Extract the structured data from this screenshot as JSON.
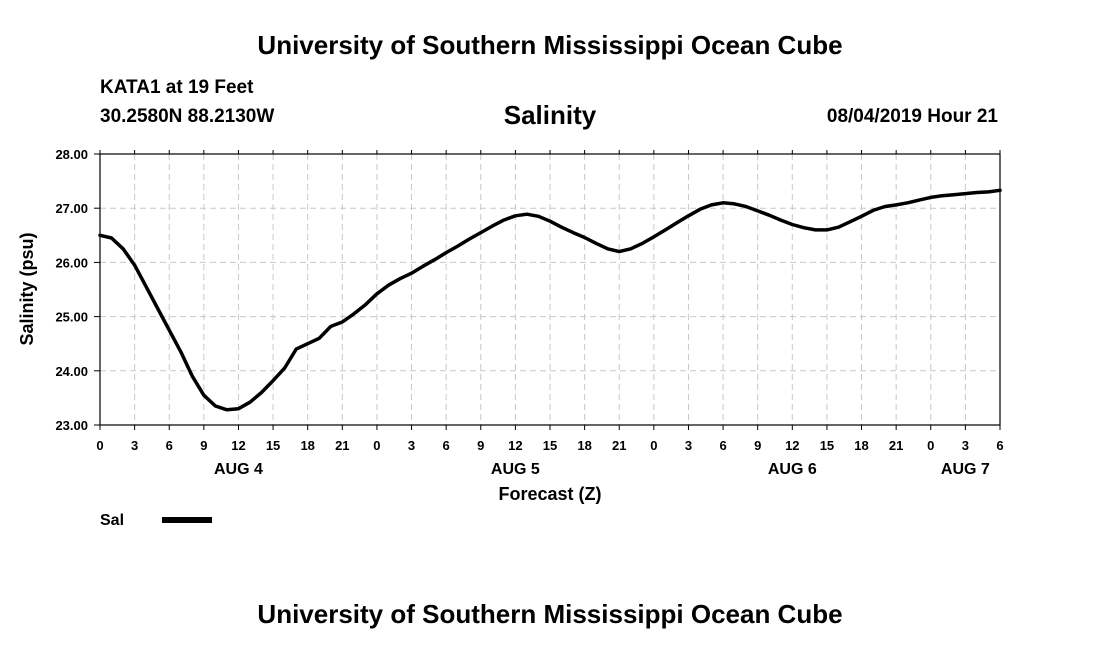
{
  "header": {
    "title": "University of Southern Mississippi Ocean Cube",
    "station": "KATA1 at 19 Feet",
    "coordinates": "30.2580N 88.2130W",
    "date": "08/04/2019 Hour 21"
  },
  "footer": {
    "title": "University of Southern Mississippi Ocean Cube"
  },
  "colors": {
    "line": "#000000",
    "grid": "#c8c8c8",
    "background": "#ffffff"
  },
  "chart_data": {
    "type": "line",
    "title": "Salinity",
    "xlabel": "Forecast (Z)",
    "ylabel": "Salinity (psu)",
    "ylim": [
      23.0,
      28.0
    ],
    "yticks": [
      23.0,
      24.0,
      25.0,
      26.0,
      27.0,
      28.0
    ],
    "ytick_labels": [
      "23.00",
      "24.00",
      "25.00",
      "26.00",
      "27.00",
      "28.00"
    ],
    "xlim": [
      0,
      78
    ],
    "xticks": [
      0,
      3,
      6,
      9,
      12,
      15,
      18,
      21,
      24,
      27,
      30,
      33,
      36,
      39,
      42,
      45,
      48,
      51,
      54,
      57,
      60,
      63,
      66,
      69,
      72,
      75,
      78
    ],
    "xtick_labels": [
      "0",
      "3",
      "6",
      "9",
      "12",
      "15",
      "18",
      "21",
      "0",
      "3",
      "6",
      "9",
      "12",
      "15",
      "18",
      "21",
      "0",
      "3",
      "6",
      "9",
      "12",
      "15",
      "18",
      "21",
      "0",
      "3",
      "6"
    ],
    "day_labels": [
      {
        "label": "AUG 4",
        "hour": 12
      },
      {
        "label": "AUG 5",
        "hour": 36
      },
      {
        "label": "AUG 6",
        "hour": 60
      },
      {
        "label": "AUG 7",
        "hour": 75
      }
    ],
    "grid": true,
    "legend": {
      "placement": "bottom-left",
      "entries": [
        "Sal"
      ]
    },
    "series": [
      {
        "name": "Sal",
        "x": [
          0,
          1,
          2,
          3,
          4,
          5,
          6,
          7,
          8,
          9,
          10,
          11,
          12,
          13,
          14,
          15,
          16,
          17,
          18,
          19,
          20,
          21,
          22,
          23,
          24,
          25,
          26,
          27,
          28,
          29,
          30,
          31,
          32,
          33,
          34,
          35,
          36,
          37,
          38,
          39,
          40,
          41,
          42,
          43,
          44,
          45,
          46,
          47,
          48,
          49,
          50,
          51,
          52,
          53,
          54,
          55,
          56,
          57,
          58,
          59,
          60,
          61,
          62,
          63,
          64,
          65,
          66,
          67,
          68,
          69,
          70,
          71,
          72,
          73,
          74,
          75,
          76,
          77,
          78
        ],
        "values": [
          26.5,
          26.45,
          26.25,
          25.95,
          25.55,
          25.15,
          24.75,
          24.35,
          23.9,
          23.55,
          23.35,
          23.28,
          23.3,
          23.42,
          23.6,
          23.82,
          24.05,
          24.4,
          24.5,
          24.6,
          24.82,
          24.9,
          25.05,
          25.22,
          25.42,
          25.58,
          25.7,
          25.8,
          25.93,
          26.05,
          26.18,
          26.3,
          26.43,
          26.55,
          26.67,
          26.78,
          26.86,
          26.89,
          26.85,
          26.76,
          26.65,
          26.55,
          26.46,
          26.35,
          26.25,
          26.2,
          26.25,
          26.35,
          26.47,
          26.6,
          26.73,
          26.86,
          26.98,
          27.06,
          27.1,
          27.08,
          27.03,
          26.95,
          26.87,
          26.78,
          26.7,
          26.64,
          26.6,
          26.6,
          26.65,
          26.75,
          26.85,
          26.96,
          27.03,
          27.06,
          27.1,
          27.15,
          27.2,
          27.23,
          27.25,
          27.27,
          27.29,
          27.3,
          27.33
        ]
      }
    ]
  }
}
